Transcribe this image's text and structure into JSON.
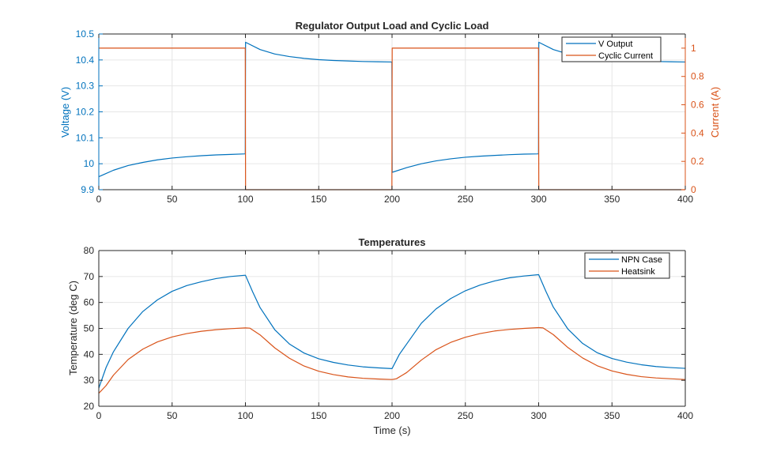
{
  "colors": {
    "blue": "#0072BD",
    "orange": "#D95319",
    "grid": "#e6e6e6",
    "axis": "#262626"
  },
  "chart_data": [
    {
      "type": "line",
      "title": "Regulator Output Load and Cyclic Load",
      "xlabel": "",
      "ylabel": "Voltage (V)",
      "ylabel_right": "Current (A)",
      "xlim": [
        0,
        400
      ],
      "ylim": [
        9.9,
        10.5
      ],
      "ylim_right": [
        0,
        1.1
      ],
      "xticks": [
        "0",
        "50",
        "100",
        "150",
        "200",
        "250",
        "300",
        "350",
        "400"
      ],
      "yticks": [
        "9.9",
        "10",
        "10.1",
        "10.2",
        "10.3",
        "10.4",
        "10.5"
      ],
      "yticks_right": [
        "0",
        "0.2",
        "0.4",
        "0.6",
        "0.8",
        "1"
      ],
      "grid": true,
      "legend_position": "top-right",
      "series": [
        {
          "name": "V Output",
          "axis": "left",
          "color": "#0072BD",
          "x": [
            0,
            10,
            20,
            30,
            40,
            50,
            60,
            70,
            80,
            90,
            99.9,
            100.1,
            110,
            120,
            130,
            140,
            150,
            160,
            170,
            180,
            190,
            199.9,
            200.1,
            210,
            220,
            230,
            240,
            250,
            260,
            270,
            280,
            290,
            299.9,
            300.1,
            310,
            320,
            330,
            340,
            350,
            360,
            370,
            380,
            390,
            400
          ],
          "y": [
            9.95,
            9.975,
            9.993,
            10.005,
            10.015,
            10.022,
            10.027,
            10.031,
            10.034,
            10.036,
            10.038,
            10.468,
            10.44,
            10.423,
            10.413,
            10.406,
            10.401,
            10.398,
            10.396,
            10.394,
            10.393,
            10.392,
            9.967,
            9.985,
            10.0,
            10.011,
            10.019,
            10.025,
            10.029,
            10.032,
            10.035,
            10.037,
            10.038,
            10.468,
            10.44,
            10.423,
            10.413,
            10.406,
            10.401,
            10.398,
            10.396,
            10.394,
            10.393,
            10.392
          ]
        },
        {
          "name": "Cyclic Current",
          "axis": "right",
          "color": "#D95319",
          "x": [
            0,
            99.9,
            100.1,
            199.9,
            200.1,
            299.9,
            300.1,
            400
          ],
          "y": [
            1,
            1,
            0,
            0,
            1,
            1,
            0,
            0
          ]
        }
      ]
    },
    {
      "type": "line",
      "title": "Temperatures",
      "xlabel": "Time (s)",
      "ylabel": "Temperature (deg C)",
      "xlim": [
        0,
        400
      ],
      "ylim": [
        20,
        80
      ],
      "xticks": [
        "0",
        "50",
        "100",
        "150",
        "200",
        "250",
        "300",
        "350",
        "400"
      ],
      "yticks": [
        "20",
        "30",
        "40",
        "50",
        "60",
        "70",
        "80"
      ],
      "grid": true,
      "legend_position": "top-right",
      "series": [
        {
          "name": "NPN Case",
          "color": "#0072BD",
          "x": [
            0,
            5,
            10,
            20,
            30,
            40,
            50,
            60,
            70,
            80,
            90,
            100,
            105,
            110,
            120,
            130,
            140,
            150,
            160,
            170,
            180,
            190,
            200,
            205,
            210,
            220,
            230,
            240,
            250,
            260,
            270,
            280,
            290,
            300,
            305,
            310,
            320,
            330,
            340,
            350,
            360,
            370,
            380,
            390,
            400
          ],
          "y": [
            27,
            35,
            41,
            50,
            56.5,
            61,
            64.3,
            66.5,
            68,
            69.2,
            70,
            70.5,
            64,
            58,
            49.5,
            44,
            40.5,
            38.3,
            36.9,
            35.9,
            35.2,
            34.8,
            34.5,
            40,
            44,
            52,
            57.5,
            61.5,
            64.5,
            66.7,
            68.3,
            69.5,
            70.2,
            70.7,
            64.2,
            58.2,
            49.7,
            44.2,
            40.6,
            38.4,
            37,
            36,
            35.3,
            34.9,
            34.6
          ]
        },
        {
          "name": "Heatsink",
          "color": "#D95319",
          "x": [
            0,
            5,
            10,
            20,
            30,
            40,
            50,
            60,
            70,
            80,
            90,
            100,
            103,
            110,
            120,
            130,
            140,
            150,
            160,
            170,
            180,
            190,
            200,
            203,
            210,
            220,
            230,
            240,
            250,
            260,
            270,
            280,
            290,
            300,
            303,
            310,
            320,
            330,
            340,
            350,
            360,
            370,
            380,
            390,
            400
          ],
          "y": [
            25,
            28,
            32,
            38,
            42,
            44.8,
            46.7,
            48,
            48.9,
            49.5,
            49.9,
            50.2,
            50.1,
            47.5,
            42.5,
            38.5,
            35.5,
            33.5,
            32.2,
            31.3,
            30.8,
            30.5,
            30.3,
            30.6,
            33,
            37.8,
            41.8,
            44.6,
            46.6,
            48,
            49,
            49.6,
            50,
            50.3,
            50.2,
            47.6,
            42.6,
            38.6,
            35.6,
            33.6,
            32.3,
            31.4,
            30.9,
            30.6,
            30.3
          ]
        }
      ]
    }
  ]
}
